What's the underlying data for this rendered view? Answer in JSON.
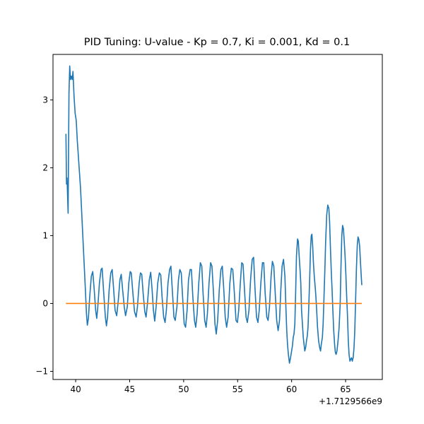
{
  "chart_data": {
    "type": "line",
    "title": "PID Tuning: U-value - Kp = 0.7, Ki = 0.001, Kd = 0.1",
    "xlabel": "",
    "ylabel": "",
    "x_offset_label": "+1.7129566e9",
    "xlim": [
      37.9,
      68.4
    ],
    "ylim": [
      -1.12,
      3.67
    ],
    "xticks": [
      40,
      45,
      50,
      55,
      60,
      65
    ],
    "xtick_labels": [
      "40",
      "45",
      "50",
      "55",
      "60",
      "65"
    ],
    "yticks": [
      -1,
      0,
      1,
      2,
      3
    ],
    "ytick_labels": [
      "−1",
      "0",
      "1",
      "2",
      "3"
    ],
    "grid": false,
    "legend": "none",
    "colors": {
      "u_value": "#1f77b4",
      "setpoint": "#ff7f0e",
      "frame": "#000000"
    },
    "series": [
      {
        "color": "#1f77b4",
        "points": [
          [
            39.1,
            2.5
          ],
          [
            39.15,
            1.76
          ],
          [
            39.2,
            1.85
          ],
          [
            39.3,
            1.33
          ],
          [
            39.38,
            3.1
          ],
          [
            39.45,
            3.5
          ],
          [
            39.52,
            3.3
          ],
          [
            39.6,
            3.35
          ],
          [
            39.68,
            3.3
          ],
          [
            39.75,
            3.42
          ],
          [
            39.85,
            3.05
          ],
          [
            39.95,
            2.8
          ],
          [
            40.05,
            2.7
          ],
          [
            40.15,
            2.4
          ],
          [
            40.3,
            2.05
          ],
          [
            40.45,
            1.7
          ],
          [
            40.6,
            1.2
          ],
          [
            40.75,
            0.7
          ],
          [
            40.9,
            0.2
          ],
          [
            41.0,
            -0.15
          ],
          [
            41.08,
            -0.32
          ],
          [
            41.18,
            -0.22
          ],
          [
            41.3,
            0.1
          ],
          [
            41.45,
            0.4
          ],
          [
            41.58,
            0.47
          ],
          [
            41.72,
            0.2
          ],
          [
            41.85,
            -0.1
          ],
          [
            41.95,
            -0.22
          ],
          [
            42.05,
            -0.05
          ],
          [
            42.2,
            0.3
          ],
          [
            42.35,
            0.5
          ],
          [
            42.45,
            0.52
          ],
          [
            42.6,
            0.15
          ],
          [
            42.75,
            -0.2
          ],
          [
            42.85,
            -0.33
          ],
          [
            42.95,
            -0.2
          ],
          [
            43.1,
            0.2
          ],
          [
            43.25,
            0.45
          ],
          [
            43.38,
            0.5
          ],
          [
            43.52,
            0.2
          ],
          [
            43.65,
            -0.1
          ],
          [
            43.8,
            -0.18
          ],
          [
            43.95,
            0.05
          ],
          [
            44.1,
            0.35
          ],
          [
            44.22,
            0.43
          ],
          [
            44.35,
            0.2
          ],
          [
            44.5,
            -0.05
          ],
          [
            44.62,
            -0.18
          ],
          [
            44.78,
            -0.05
          ],
          [
            44.92,
            0.3
          ],
          [
            45.05,
            0.47
          ],
          [
            45.15,
            0.45
          ],
          [
            45.3,
            0.15
          ],
          [
            45.45,
            -0.12
          ],
          [
            45.6,
            -0.2
          ],
          [
            45.72,
            -0.05
          ],
          [
            45.88,
            0.3
          ],
          [
            46.0,
            0.45
          ],
          [
            46.12,
            0.43
          ],
          [
            46.25,
            0.15
          ],
          [
            46.4,
            -0.12
          ],
          [
            46.52,
            -0.2
          ],
          [
            46.65,
            0.0
          ],
          [
            46.82,
            0.35
          ],
          [
            46.95,
            0.46
          ],
          [
            47.08,
            0.2
          ],
          [
            47.2,
            -0.1
          ],
          [
            47.32,
            -0.26
          ],
          [
            47.45,
            -0.05
          ],
          [
            47.6,
            0.3
          ],
          [
            47.75,
            0.45
          ],
          [
            47.88,
            0.42
          ],
          [
            48.0,
            0.1
          ],
          [
            48.15,
            -0.2
          ],
          [
            48.28,
            -0.28
          ],
          [
            48.4,
            -0.1
          ],
          [
            48.55,
            0.3
          ],
          [
            48.7,
            0.5
          ],
          [
            48.82,
            0.55
          ],
          [
            48.95,
            0.2
          ],
          [
            49.1,
            -0.2
          ],
          [
            49.22,
            -0.25
          ],
          [
            49.38,
            -0.05
          ],
          [
            49.52,
            0.35
          ],
          [
            49.65,
            0.5
          ],
          [
            49.78,
            0.45
          ],
          [
            49.92,
            0.05
          ],
          [
            50.05,
            -0.3
          ],
          [
            50.18,
            -0.35
          ],
          [
            50.32,
            -0.1
          ],
          [
            50.45,
            0.35
          ],
          [
            50.6,
            0.5
          ],
          [
            50.72,
            0.5
          ],
          [
            50.85,
            0.1
          ],
          [
            51.0,
            -0.25
          ],
          [
            51.12,
            -0.35
          ],
          [
            51.25,
            -0.15
          ],
          [
            51.4,
            0.3
          ],
          [
            51.55,
            0.6
          ],
          [
            51.68,
            0.55
          ],
          [
            51.8,
            0.15
          ],
          [
            51.95,
            -0.25
          ],
          [
            52.08,
            -0.35
          ],
          [
            52.2,
            -0.15
          ],
          [
            52.35,
            0.3
          ],
          [
            52.5,
            0.6
          ],
          [
            52.62,
            0.55
          ],
          [
            52.75,
            0.2
          ],
          [
            52.9,
            -0.3
          ],
          [
            53.02,
            -0.45
          ],
          [
            53.15,
            -0.25
          ],
          [
            53.3,
            0.2
          ],
          [
            53.45,
            0.5
          ],
          [
            53.58,
            0.55
          ],
          [
            53.72,
            0.2
          ],
          [
            53.85,
            -0.2
          ],
          [
            53.98,
            -0.35
          ],
          [
            54.12,
            -0.2
          ],
          [
            54.28,
            0.3
          ],
          [
            54.42,
            0.52
          ],
          [
            54.55,
            0.5
          ],
          [
            54.7,
            0.15
          ],
          [
            54.85,
            -0.25
          ],
          [
            54.98,
            -0.28
          ],
          [
            55.1,
            -0.1
          ],
          [
            55.25,
            0.3
          ],
          [
            55.38,
            0.6
          ],
          [
            55.5,
            0.58
          ],
          [
            55.62,
            0.25
          ],
          [
            55.78,
            -0.2
          ],
          [
            55.9,
            -0.28
          ],
          [
            56.05,
            -0.1
          ],
          [
            56.2,
            0.35
          ],
          [
            56.35,
            0.65
          ],
          [
            56.48,
            0.68
          ],
          [
            56.6,
            0.25
          ],
          [
            56.75,
            -0.2
          ],
          [
            56.88,
            -0.28
          ],
          [
            57.0,
            -0.1
          ],
          [
            57.15,
            0.3
          ],
          [
            57.3,
            0.6
          ],
          [
            57.42,
            0.6
          ],
          [
            57.55,
            0.15
          ],
          [
            57.7,
            -0.2
          ],
          [
            57.82,
            -0.25
          ],
          [
            57.95,
            -0.05
          ],
          [
            58.1,
            0.4
          ],
          [
            58.22,
            0.62
          ],
          [
            58.35,
            0.55
          ],
          [
            58.5,
            0.1
          ],
          [
            58.62,
            -0.25
          ],
          [
            58.75,
            -0.4
          ],
          [
            58.88,
            -0.25
          ],
          [
            59.0,
            0.2
          ],
          [
            59.12,
            0.55
          ],
          [
            59.25,
            0.65
          ],
          [
            59.38,
            0.4
          ],
          [
            59.48,
            -0.1
          ],
          [
            59.55,
            -0.4
          ],
          [
            59.62,
            -0.6
          ],
          [
            59.7,
            -0.75
          ],
          [
            59.8,
            -0.88
          ],
          [
            59.9,
            -0.8
          ],
          [
            60.0,
            -0.7
          ],
          [
            60.08,
            -0.62
          ],
          [
            60.15,
            -0.5
          ],
          [
            60.22,
            -0.45
          ],
          [
            60.3,
            -0.3
          ],
          [
            60.38,
            0.2
          ],
          [
            60.45,
            0.7
          ],
          [
            60.55,
            0.95
          ],
          [
            60.62,
            0.92
          ],
          [
            60.7,
            0.7
          ],
          [
            60.78,
            0.5
          ],
          [
            60.85,
            0.3
          ],
          [
            60.92,
            -0.1
          ],
          [
            61.0,
            -0.3
          ],
          [
            61.08,
            -0.5
          ],
          [
            61.15,
            -0.6
          ],
          [
            61.22,
            -0.7
          ],
          [
            61.3,
            -0.65
          ],
          [
            61.38,
            -0.55
          ],
          [
            61.45,
            -0.48
          ],
          [
            61.52,
            -0.35
          ],
          [
            61.6,
            0.0
          ],
          [
            61.68,
            0.4
          ],
          [
            61.75,
            0.8
          ],
          [
            61.82,
            1.0
          ],
          [
            61.88,
            1.02
          ],
          [
            61.95,
            0.85
          ],
          [
            62.02,
            0.6
          ],
          [
            62.1,
            0.4
          ],
          [
            62.18,
            0.25
          ],
          [
            62.25,
            0.1
          ],
          [
            62.32,
            -0.1
          ],
          [
            62.4,
            -0.35
          ],
          [
            62.5,
            -0.55
          ],
          [
            62.6,
            -0.65
          ],
          [
            62.68,
            -0.7
          ],
          [
            62.75,
            -0.6
          ],
          [
            62.85,
            -0.5
          ],
          [
            62.92,
            -0.3
          ],
          [
            63.0,
            0.1
          ],
          [
            63.08,
            0.5
          ],
          [
            63.15,
            0.9
          ],
          [
            63.25,
            1.3
          ],
          [
            63.35,
            1.45
          ],
          [
            63.45,
            1.4
          ],
          [
            63.52,
            1.2
          ],
          [
            63.6,
            0.8
          ],
          [
            63.68,
            0.45
          ],
          [
            63.75,
            0.2
          ],
          [
            63.82,
            -0.1
          ],
          [
            63.9,
            -0.4
          ],
          [
            63.98,
            -0.6
          ],
          [
            64.05,
            -0.72
          ],
          [
            64.12,
            -0.75
          ],
          [
            64.2,
            -0.7
          ],
          [
            64.3,
            -0.55
          ],
          [
            64.4,
            -0.35
          ],
          [
            64.5,
            0.0
          ],
          [
            64.58,
            0.6
          ],
          [
            64.65,
            1.0
          ],
          [
            64.72,
            1.15
          ],
          [
            64.8,
            1.1
          ],
          [
            64.88,
            0.9
          ],
          [
            64.95,
            0.7
          ],
          [
            65.02,
            0.45
          ],
          [
            65.1,
            0.1
          ],
          [
            65.18,
            -0.2
          ],
          [
            65.25,
            -0.55
          ],
          [
            65.32,
            -0.75
          ],
          [
            65.4,
            -0.85
          ],
          [
            65.48,
            -0.82
          ],
          [
            65.55,
            -0.8
          ],
          [
            65.62,
            -0.85
          ],
          [
            65.7,
            -0.8
          ],
          [
            65.78,
            -0.65
          ],
          [
            65.85,
            -0.4
          ],
          [
            65.92,
            0.0
          ],
          [
            66.0,
            0.5
          ],
          [
            66.08,
            0.85
          ],
          [
            66.15,
            0.98
          ],
          [
            66.22,
            0.95
          ],
          [
            66.3,
            0.85
          ],
          [
            66.38,
            0.6
          ],
          [
            66.45,
            0.4
          ],
          [
            66.5,
            0.27
          ]
        ]
      },
      {
        "color": "#ff7f0e",
        "points": [
          [
            39.1,
            0.0
          ],
          [
            66.5,
            0.0
          ]
        ]
      }
    ]
  }
}
